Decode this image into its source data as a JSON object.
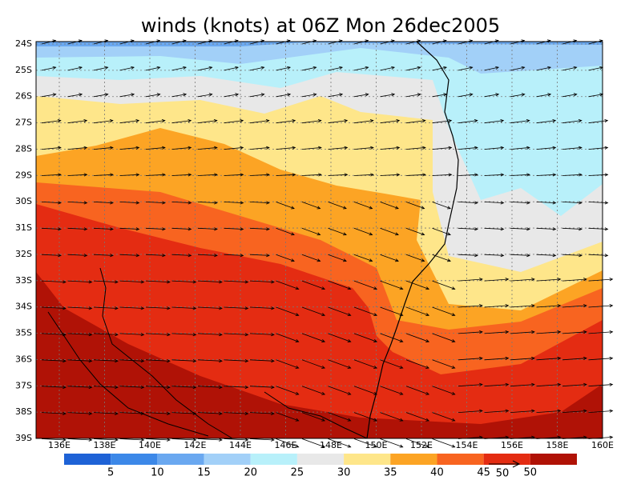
{
  "title": "winds (knots) at 06Z Mon 26dec2005",
  "lat_labels": [
    "24S",
    "25S",
    "26S",
    "27S",
    "28S",
    "29S",
    "30S",
    "31S",
    "32S",
    "33S",
    "34S",
    "35S",
    "36S",
    "37S",
    "38S",
    "39S"
  ],
  "lon_labels": [
    "136E",
    "138E",
    "140E",
    "142E",
    "144E",
    "146E",
    "148E",
    "150E",
    "152E",
    "154E",
    "156E",
    "158E",
    "160E"
  ],
  "colorbar": {
    "labels": [
      "5",
      "10",
      "15",
      "20",
      "25",
      "30",
      "35",
      "40",
      "45",
      "50"
    ]
  },
  "reference_vector": {
    "label": "50"
  }
}
